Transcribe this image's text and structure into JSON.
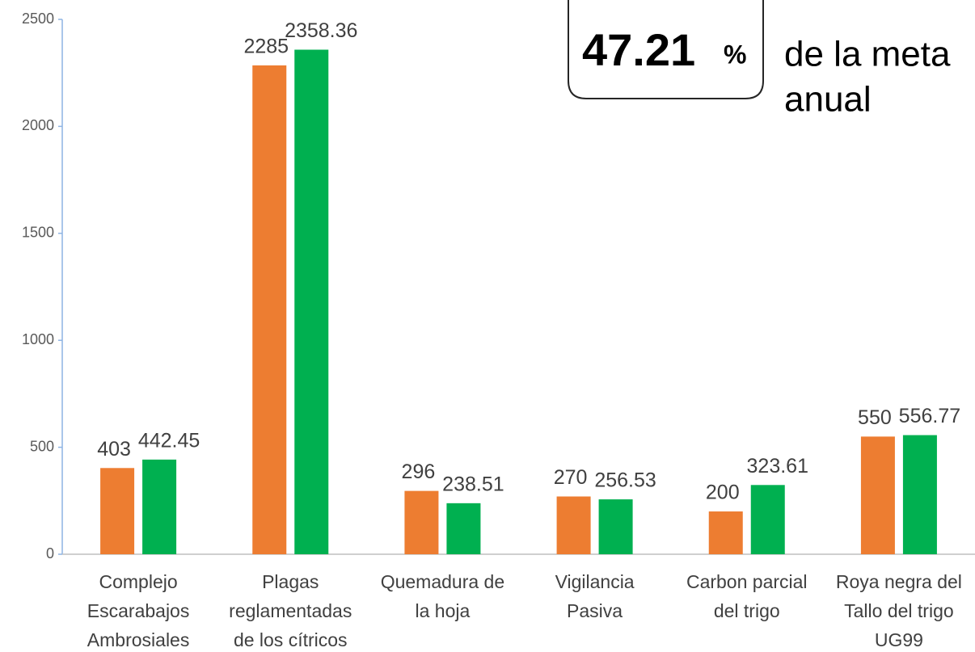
{
  "chart_data": {
    "type": "bar",
    "categories": [
      [
        "Complejo",
        "Escarabajos",
        "Ambrosiales"
      ],
      [
        "Plagas",
        "reglamentadas",
        "de los cítricos"
      ],
      [
        "Quemadura de",
        "la hoja"
      ],
      [
        "Vigilancia",
        "Pasiva"
      ],
      [
        "Carbon parcial",
        "del trigo"
      ],
      [
        "Roya negra del",
        "Tallo del trigo",
        "UG99"
      ]
    ],
    "series": [
      {
        "color": "#ed7d31",
        "values": [
          403,
          2285,
          296,
          270,
          200,
          550
        ]
      },
      {
        "color": "#00b050",
        "values": [
          442.45,
          2358.36,
          238.51,
          256.53,
          323.61,
          556.77
        ]
      }
    ],
    "ylim": [
      0,
      2500
    ],
    "yticks": [
      0,
      500,
      1000,
      1500,
      2000,
      2500
    ],
    "annotation": {
      "value": "47.21",
      "unit": "%",
      "text": [
        "de la meta",
        "anual"
      ]
    }
  }
}
